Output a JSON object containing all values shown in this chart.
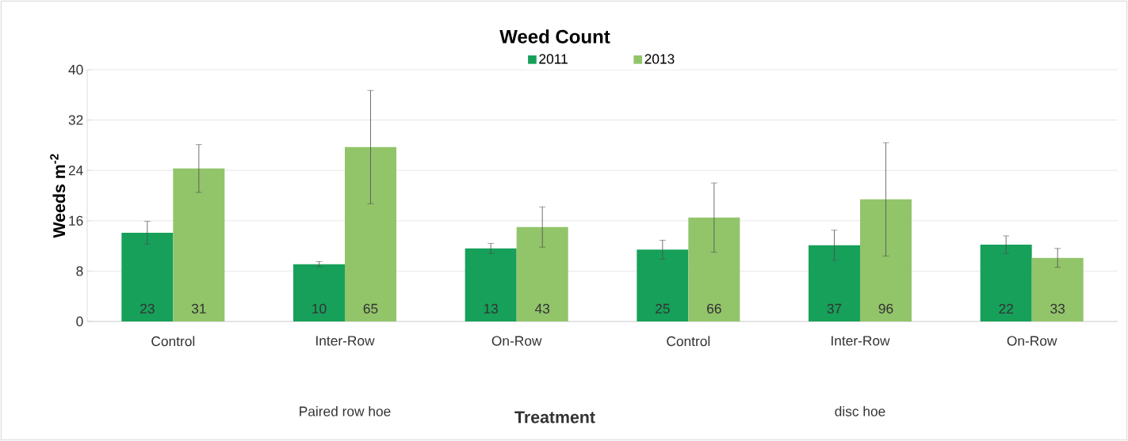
{
  "chart_data": {
    "type": "bar",
    "title": "Weed Count",
    "xlabel": "Treatment",
    "ylabel": "Weeds m$^{-2}$",
    "categories": [
      "Control",
      "Inter-Row",
      "On-Row",
      "Control",
      "Inter-Row",
      "On-Row"
    ],
    "series": [
      {
        "name": "2011",
        "color": "#17a05a",
        "values": [
          14.1,
          9.1,
          11.6,
          11.4,
          12.1,
          12.2
        ],
        "errors": [
          1.8,
          0.4,
          0.8,
          1.5,
          2.4,
          1.4
        ]
      },
      {
        "name": "2013",
        "color": "#92c46a",
        "values": [
          24.3,
          27.7,
          15.0,
          16.5,
          19.4,
          10.1
        ],
        "errors": [
          3.8,
          9.0,
          3.2,
          5.5,
          9.0,
          1.5
        ]
      }
    ],
    "ylim": [
      0,
      40
    ],
    "yticks": [
      0,
      8,
      16,
      24,
      32,
      40
    ],
    "grid": "y",
    "legend": "top",
    "annotations": [
      "23",
      "31",
      "10",
      "65",
      "13",
      "43",
      "25",
      "66",
      "37",
      "96",
      "22",
      "33",
      "Paired row hoe",
      "disc hoe"
    ]
  }
}
